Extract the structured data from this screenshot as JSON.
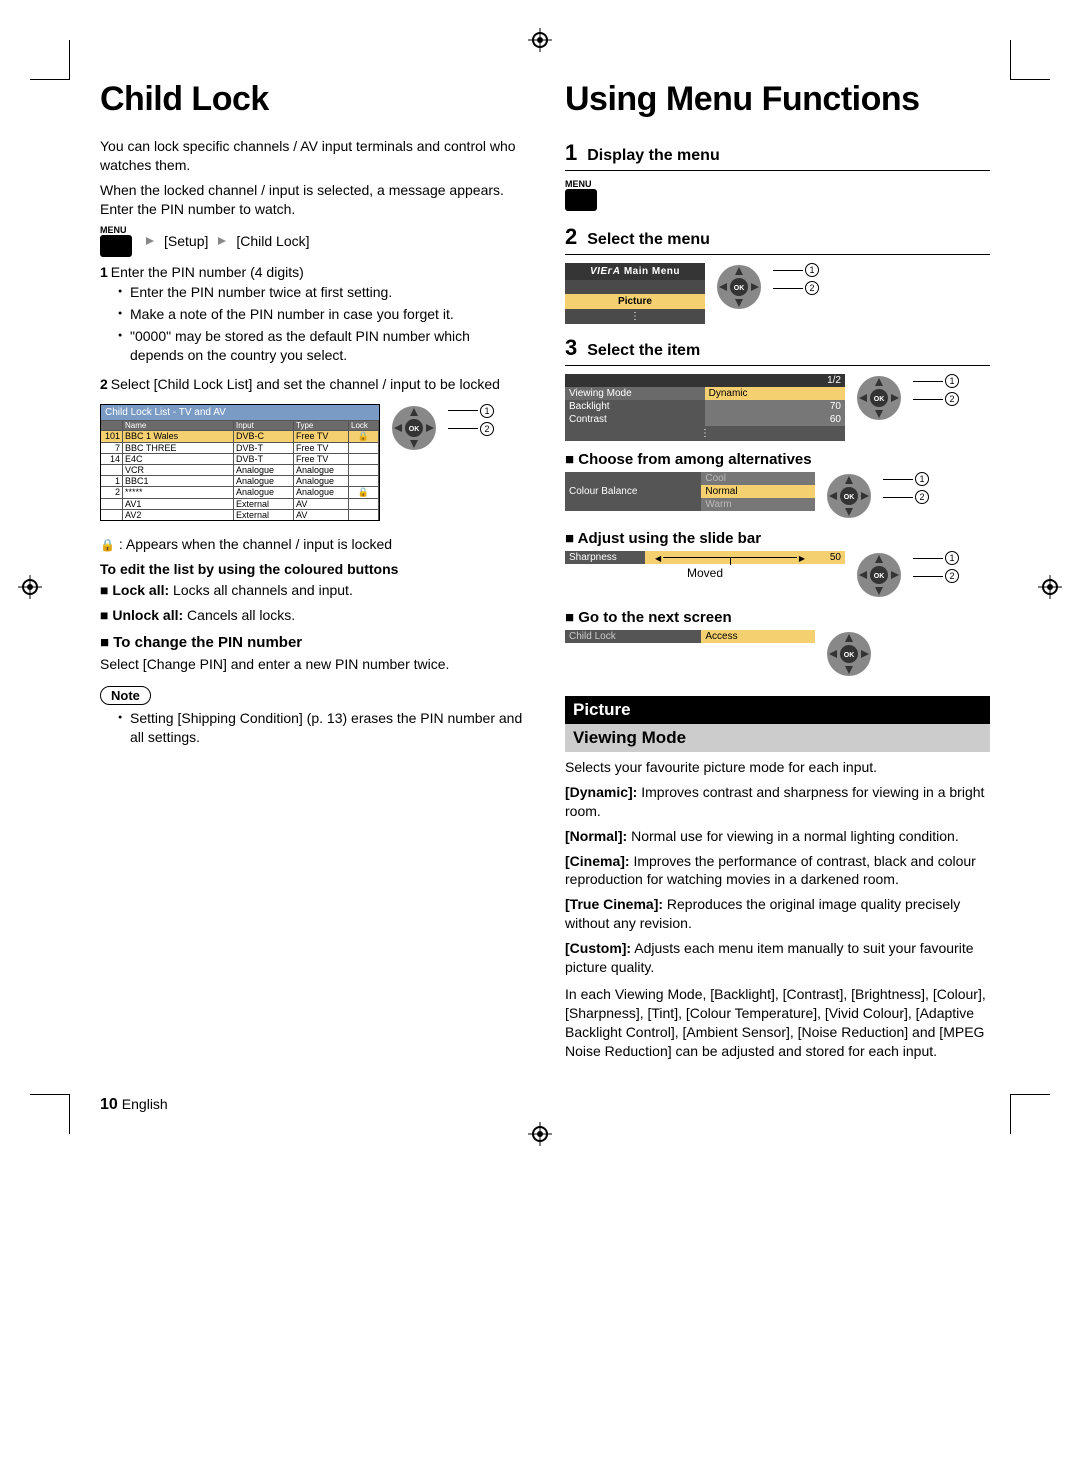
{
  "left": {
    "title": "Child Lock",
    "intro1": "You can lock specific channels / AV input terminals and control who watches them.",
    "intro2": "When the locked channel / input is selected, a message appears. Enter the PIN number to watch.",
    "menuLabel": "MENU",
    "crumb1": "[Setup]",
    "crumb2": "[Child Lock]",
    "step1": "Enter the PIN number (4 digits)",
    "step1_bullets": [
      "Enter the PIN number twice at first setting.",
      "Make a note of the PIN number in case you forget it.",
      "\"0000\" may be stored as the default PIN number which depends on the country you select."
    ],
    "step2": "Select [Child Lock List] and set the channel / input to be locked",
    "table": {
      "title": "Child Lock List - TV and AV",
      "headers": [
        "",
        "Name",
        "Input",
        "Type",
        "Lock"
      ],
      "rows": [
        [
          "101",
          "BBC 1 Wales",
          "DVB-C",
          "Free TV",
          "🔒"
        ],
        [
          "7",
          "BBC THREE",
          "DVB-T",
          "Free TV",
          ""
        ],
        [
          "14",
          "E4C",
          "DVB-T",
          "Free TV",
          ""
        ],
        [
          "",
          "VCR",
          "Analogue",
          "Analogue",
          ""
        ],
        [
          "1",
          "BBC1",
          "Analogue",
          "Analogue",
          ""
        ],
        [
          "2",
          "*****",
          "Analogue",
          "Analogue",
          "🔒"
        ],
        [
          "",
          "AV1",
          "External",
          "AV",
          ""
        ],
        [
          "",
          "AV2",
          "External",
          "AV",
          ""
        ]
      ]
    },
    "lockAppears": ": Appears when the channel / input is locked",
    "editHead": "To edit the list by using the coloured buttons",
    "lockAllLabel": "Lock all:",
    "lockAllText": " Locks all channels and input.",
    "unlockAllLabel": "Unlock all:",
    "unlockAllText": " Cancels all locks.",
    "changePinHead": "To change the PIN number",
    "changePinText": "Select [Change PIN] and enter a new PIN number twice.",
    "noteLabel": "Note",
    "noteText": "Setting [Shipping Condition] (p. 13) erases the PIN number and all settings."
  },
  "right": {
    "title": "Using Menu Functions",
    "step1": "Display the menu",
    "menuLabel": "MENU",
    "step2": "Select the menu",
    "mainMenu": {
      "title": "Main Menu",
      "selected": "Picture"
    },
    "step3": "Select the item",
    "items": {
      "page": "1/2",
      "rows": [
        {
          "label": "Viewing Mode",
          "value": "Dynamic",
          "num": ""
        },
        {
          "label": "Backlight",
          "value": "",
          "num": "70"
        },
        {
          "label": "Contrast",
          "value": "",
          "num": "60"
        }
      ]
    },
    "chooseHead": "Choose from among alternatives",
    "opts": {
      "label": "Colour Balance",
      "values": [
        "Cool",
        "Normal",
        "Warm"
      ],
      "selectedIndex": 1
    },
    "adjustHead": "Adjust using the slide bar",
    "slider": {
      "label": "Sharpness",
      "value": "50",
      "moved": "Moved"
    },
    "nextHead": "Go to the next screen",
    "access": {
      "label": "Child Lock",
      "button": "Access"
    },
    "picture": {
      "bar": "Picture",
      "sub": "Viewing Mode",
      "intro": "Selects your favourite picture mode for each input.",
      "modes": [
        {
          "name": "[Dynamic]:",
          "desc": " Improves contrast and sharpness for viewing in a bright room."
        },
        {
          "name": "[Normal]:",
          "desc": " Normal use for viewing in a normal lighting condition."
        },
        {
          "name": "[Cinema]:",
          "desc": " Improves the performance of contrast, black and colour reproduction for watching movies in a darkened room."
        },
        {
          "name": "[True Cinema]:",
          "desc": " Reproduces the original image quality precisely without any revision."
        },
        {
          "name": "[Custom]:",
          "desc": " Adjusts each menu item manually to suit your favourite picture quality."
        }
      ],
      "footnote": "In each Viewing Mode, [Backlight], [Contrast], [Brightness], [Colour], [Sharpness], [Tint], [Colour Temperature], [Vivid Colour], [Adaptive Backlight Control], [Ambient Sensor], [Noise Reduction] and [MPEG Noise Reduction] can be adjusted and stored for each input."
    }
  },
  "footer": {
    "page": "10",
    "lang": "English"
  },
  "colors": {
    "highlight": "#f5d070",
    "headerBlue": "#7a9bc4",
    "darkGrey": "#555555",
    "midGrey": "#777777"
  }
}
